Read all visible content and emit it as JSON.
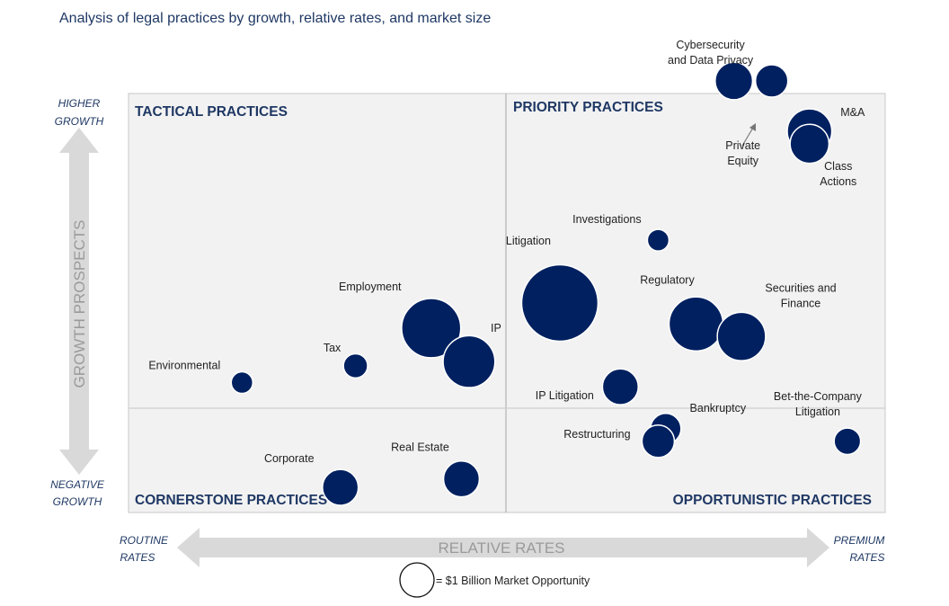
{
  "title": "Analysis of legal practices by growth, relative rates, and market size",
  "colors": {
    "bubble": "#002060",
    "quad_label": "#1f3864",
    "arrow": "#d9d9d9",
    "axis_text": "#9a9a9a"
  },
  "quadrants": {
    "top_left": "TACTICAL PRACTICES",
    "top_right": "PRIORITY PRACTICES",
    "bottom_left": "CORNERSTONE PRACTICES",
    "bottom_right": "OPPORTUNISTIC PRACTICES"
  },
  "y_axis": {
    "title": "GROWTH PROSPECTS",
    "high": [
      "HIGHER",
      "GROWTH"
    ],
    "low": [
      "NEGATIVE",
      "GROWTH"
    ]
  },
  "x_axis": {
    "title": "RELATIVE RATES",
    "low": [
      "ROUTINE",
      "RATES"
    ],
    "high": [
      "PREMIUM",
      "RATES"
    ]
  },
  "legend": {
    "text": "= $1 Billion Market Opportunity"
  },
  "chart_data": {
    "type": "scatter",
    "title": "Analysis of legal practices by growth, relative rates, and market size",
    "xlabel": "RELATIVE RATES",
    "ylabel": "GROWTH PROSPECTS",
    "xlim": [
      0,
      1
    ],
    "ylim": [
      0,
      1
    ],
    "size_unit": "$ Billion Market Opportunity",
    "points": [
      {
        "name": "Cybersecurity and Data Privacy",
        "lines": [
          "Cybersecurity",
          "and Data Privacy"
        ],
        "x": 0.8,
        "y": 1.03,
        "size": 1.2
      },
      {
        "name": "Private Equity",
        "lines": [
          "Private",
          "Equity"
        ],
        "x": 0.85,
        "y": 1.03,
        "size": 0.9
      },
      {
        "name": "M&A",
        "lines": [
          "M&A"
        ],
        "x": 0.9,
        "y": 0.91,
        "size": 1.7
      },
      {
        "name": "Class Actions",
        "lines": [
          "Class",
          "Actions"
        ],
        "x": 0.9,
        "y": 0.88,
        "size": 1.3
      },
      {
        "name": "Investigations",
        "lines": [
          "Investigations"
        ],
        "x": 0.7,
        "y": 0.65,
        "size": 0.4
      },
      {
        "name": "Litigation",
        "lines": [
          "Litigation"
        ],
        "x": 0.57,
        "y": 0.5,
        "size": 5.0
      },
      {
        "name": "Regulatory",
        "lines": [
          "Regulatory"
        ],
        "x": 0.75,
        "y": 0.45,
        "size": 2.5
      },
      {
        "name": "Securities and Finance",
        "lines": [
          "Securities and",
          "Finance"
        ],
        "x": 0.81,
        "y": 0.42,
        "size": 2.0
      },
      {
        "name": "Employment",
        "lines": [
          "Employment"
        ],
        "x": 0.4,
        "y": 0.44,
        "size": 3.0
      },
      {
        "name": "IP",
        "lines": [
          "IP"
        ],
        "x": 0.45,
        "y": 0.36,
        "size": 2.3
      },
      {
        "name": "Tax",
        "lines": [
          "Tax"
        ],
        "x": 0.3,
        "y": 0.35,
        "size": 0.5
      },
      {
        "name": "Environmental",
        "lines": [
          "Environmental"
        ],
        "x": 0.15,
        "y": 0.31,
        "size": 0.4
      },
      {
        "name": "IP Litigation",
        "lines": [
          "IP Litigation"
        ],
        "x": 0.65,
        "y": 0.3,
        "size": 1.1
      },
      {
        "name": "Bankruptcy",
        "lines": [
          "Bankruptcy"
        ],
        "x": 0.71,
        "y": 0.2,
        "size": 0.8
      },
      {
        "name": "Restructuring",
        "lines": [
          "Restructuring"
        ],
        "x": 0.7,
        "y": 0.17,
        "size": 0.9
      },
      {
        "name": "Bet-the-Company Litigation",
        "lines": [
          "Bet-the-Company",
          "Litigation"
        ],
        "x": 0.95,
        "y": 0.17,
        "size": 0.6
      },
      {
        "name": "Real Estate",
        "lines": [
          "Real Estate"
        ],
        "x": 0.44,
        "y": 0.08,
        "size": 1.1
      },
      {
        "name": "Corporate",
        "lines": [
          "Corporate"
        ],
        "x": 0.28,
        "y": 0.06,
        "size": 1.1
      }
    ],
    "legend_bubble_size": 1.0
  }
}
